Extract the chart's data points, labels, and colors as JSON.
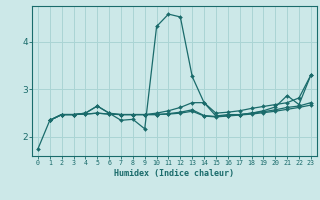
{
  "xlabel": "Humidex (Indice chaleur)",
  "bg_color": "#cce8e8",
  "grid_color": "#aad4d4",
  "line_color": "#1a6b6b",
  "xmin": -0.5,
  "xmax": 23.5,
  "ymin": 1.6,
  "ymax": 4.75,
  "yticks": [
    2,
    3,
    4
  ],
  "xticks": [
    0,
    1,
    2,
    3,
    4,
    5,
    6,
    7,
    8,
    9,
    10,
    11,
    12,
    13,
    14,
    15,
    16,
    17,
    18,
    19,
    20,
    21,
    22,
    23
  ],
  "line1_x": [
    0,
    1,
    2,
    3,
    4,
    5,
    6,
    7,
    8,
    9,
    10,
    11,
    12,
    13,
    14,
    15,
    16,
    17,
    18,
    19,
    20,
    21,
    22,
    23
  ],
  "line1_y": [
    1.75,
    2.35,
    2.47,
    2.47,
    2.5,
    2.65,
    2.5,
    2.35,
    2.37,
    2.17,
    4.32,
    4.58,
    4.52,
    3.27,
    2.72,
    2.44,
    2.47,
    2.47,
    2.5,
    2.55,
    2.63,
    2.87,
    2.68,
    3.3
  ],
  "line2_x": [
    1,
    2,
    3,
    4,
    5,
    6,
    7,
    8,
    9,
    10,
    11,
    12,
    13,
    14,
    15,
    16,
    17,
    18,
    19,
    20,
    21,
    22,
    23
  ],
  "line2_y": [
    2.35,
    2.47,
    2.47,
    2.5,
    2.65,
    2.5,
    2.47,
    2.47,
    2.47,
    2.5,
    2.55,
    2.62,
    2.72,
    2.72,
    2.5,
    2.52,
    2.55,
    2.6,
    2.64,
    2.68,
    2.72,
    2.82,
    3.3
  ],
  "line3_x": [
    1,
    2,
    3,
    4,
    5,
    6,
    7,
    8,
    9,
    10,
    11,
    12,
    13,
    14,
    15,
    16,
    17,
    18,
    19,
    20,
    21,
    22,
    23
  ],
  "line3_y": [
    2.35,
    2.47,
    2.47,
    2.48,
    2.5,
    2.48,
    2.47,
    2.47,
    2.47,
    2.47,
    2.49,
    2.52,
    2.57,
    2.45,
    2.43,
    2.45,
    2.47,
    2.5,
    2.53,
    2.57,
    2.62,
    2.65,
    2.72
  ],
  "line4_x": [
    1,
    2,
    3,
    4,
    5,
    6,
    7,
    8,
    9,
    10,
    11,
    12,
    13,
    14,
    15,
    16,
    17,
    18,
    19,
    20,
    21,
    22,
    23
  ],
  "line4_y": [
    2.35,
    2.47,
    2.47,
    2.48,
    2.5,
    2.48,
    2.47,
    2.47,
    2.47,
    2.47,
    2.48,
    2.5,
    2.54,
    2.44,
    2.42,
    2.44,
    2.46,
    2.48,
    2.51,
    2.54,
    2.58,
    2.62,
    2.67
  ]
}
